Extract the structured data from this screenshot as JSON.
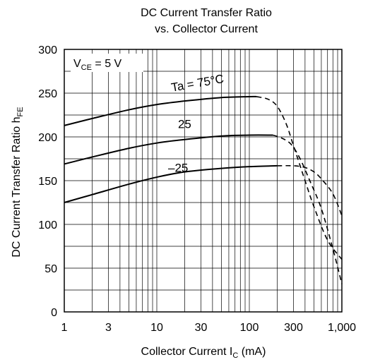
{
  "chart_data": {
    "type": "line",
    "title_lines": [
      "DC Current Transfer Ratio",
      "vs. Collector Current"
    ],
    "xlabel": {
      "main": "Collector Current  I",
      "sub": "C",
      "unit": "  (mA)"
    },
    "ylabel": {
      "main": "DC Current Transfer Ratio  h",
      "sub": "FE"
    },
    "x_scale": "log",
    "xlim": [
      1,
      1000
    ],
    "ylim": [
      0,
      300
    ],
    "x_ticks": [
      1,
      3,
      10,
      30,
      100,
      300,
      1000
    ],
    "x_tick_labels": [
      "1",
      "3",
      "10",
      "30",
      "100",
      "300",
      "1,000"
    ],
    "y_ticks": [
      0,
      50,
      100,
      150,
      200,
      250,
      300
    ],
    "y_tick_labels": [
      "0",
      "50",
      "100",
      "150",
      "200",
      "250",
      "300"
    ],
    "grid": true,
    "condition": {
      "main": "V",
      "sub": "CE",
      "rest": " = 5 V"
    },
    "series": [
      {
        "name": "Ta = 75°C",
        "label_text": "Ta = 75°C",
        "solid": [
          [
            1,
            213
          ],
          [
            2,
            221
          ],
          [
            5,
            231
          ],
          [
            10,
            237
          ],
          [
            20,
            241
          ],
          [
            50,
            245
          ],
          [
            100,
            246
          ],
          [
            120,
            246
          ]
        ],
        "dashed": [
          [
            120,
            246
          ],
          [
            160,
            243
          ],
          [
            200,
            235
          ],
          [
            250,
            215
          ],
          [
            300,
            190
          ],
          [
            400,
            150
          ],
          [
            500,
            120
          ],
          [
            700,
            82
          ],
          [
            1000,
            60
          ]
        ]
      },
      {
        "name": "25",
        "label_text": "25",
        "solid": [
          [
            1,
            169
          ],
          [
            2,
            177
          ],
          [
            5,
            187
          ],
          [
            10,
            193
          ],
          [
            20,
            197
          ],
          [
            50,
            201
          ],
          [
            100,
            202
          ],
          [
            180,
            202
          ]
        ],
        "dashed": [
          [
            180,
            202
          ],
          [
            220,
            199
          ],
          [
            280,
            192
          ],
          [
            350,
            176
          ],
          [
            450,
            150
          ],
          [
            600,
            118
          ],
          [
            800,
            72
          ],
          [
            1000,
            32
          ]
        ]
      },
      {
        "name": "−25",
        "label_text": "–25",
        "solid": [
          [
            1,
            125
          ],
          [
            2,
            134
          ],
          [
            5,
            146
          ],
          [
            10,
            154
          ],
          [
            20,
            160
          ],
          [
            50,
            164
          ],
          [
            100,
            166
          ],
          [
            200,
            167
          ]
        ],
        "dashed": [
          [
            200,
            167
          ],
          [
            300,
            167
          ],
          [
            400,
            165
          ],
          [
            500,
            160
          ],
          [
            600,
            152
          ],
          [
            800,
            135
          ],
          [
            1000,
            110
          ]
        ]
      }
    ]
  }
}
